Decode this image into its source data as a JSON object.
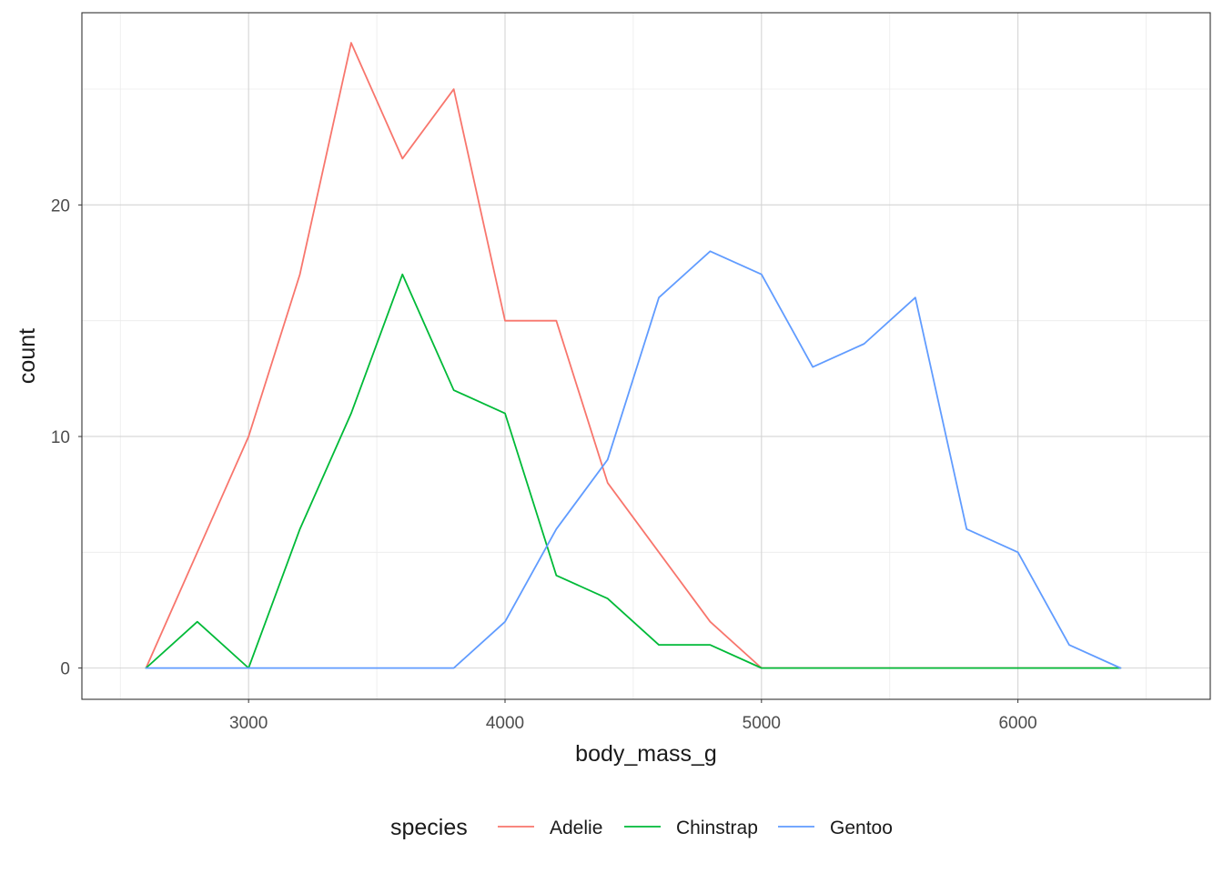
{
  "chart_data": {
    "type": "line",
    "xlabel": "body_mass_g",
    "ylabel": "count",
    "xlim": [
      2350,
      6750
    ],
    "ylim": [
      -1.35,
      28.3
    ],
    "x_ticks": [
      3000,
      4000,
      5000,
      6000
    ],
    "x_tick_labels": [
      "3000",
      "4000",
      "5000",
      "6000"
    ],
    "y_ticks": [
      0,
      10,
      20
    ],
    "y_tick_labels": [
      "0",
      "10",
      "20"
    ],
    "x_minor_ticks": [
      2500,
      3500,
      4500,
      5500,
      6500
    ],
    "y_minor_ticks": [
      5,
      15,
      25
    ],
    "grid": true,
    "legend": {
      "title": "species",
      "position": "bottom"
    },
    "x": [
      2600,
      2800,
      3000,
      3200,
      3400,
      3600,
      3800,
      4000,
      4200,
      4400,
      4600,
      4800,
      5000,
      5200,
      5400,
      5600,
      5800,
      6000,
      6200,
      6400
    ],
    "series": [
      {
        "name": "Adelie",
        "color": "#F8766D",
        "values": [
          0,
          5,
          10,
          17,
          27,
          22,
          25,
          15,
          15,
          8,
          5,
          2,
          0,
          0,
          0,
          0,
          0,
          0,
          0,
          0
        ]
      },
      {
        "name": "Chinstrap",
        "color": "#00BA38",
        "values": [
          0,
          2,
          0,
          6,
          11,
          17,
          12,
          11,
          4,
          3,
          1,
          1,
          0,
          0,
          0,
          0,
          0,
          0,
          0,
          0
        ]
      },
      {
        "name": "Gentoo",
        "color": "#619CFF",
        "values": [
          0,
          0,
          0,
          0,
          0,
          0,
          0,
          2,
          6,
          9,
          16,
          18,
          17,
          13,
          14,
          16,
          6,
          5,
          1,
          0
        ]
      }
    ]
  }
}
